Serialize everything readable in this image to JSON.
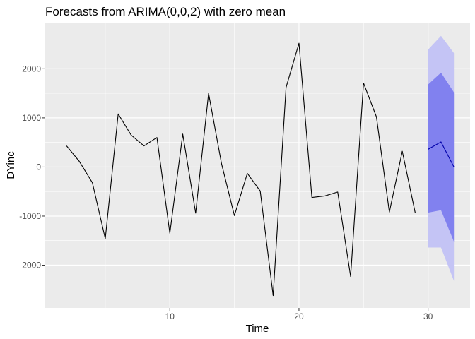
{
  "chart_data": {
    "type": "line",
    "title": "Forecasts from ARIMA(0,0,2) with zero mean",
    "xlabel": "Time",
    "ylabel": "DYinc",
    "xlim": [
      0.35,
      33.25
    ],
    "ylim": [
      -2870,
      2940
    ],
    "x_ticks": [
      10,
      20,
      30
    ],
    "y_ticks": [
      -2000,
      -1000,
      0,
      1000,
      2000
    ],
    "grid": true,
    "series": [
      {
        "role": "observed",
        "color": "#000000",
        "x": [
          2,
          3,
          4,
          5,
          6,
          7,
          8,
          9,
          10,
          11,
          12,
          13,
          14,
          15,
          16,
          17,
          18,
          19,
          20,
          21,
          22,
          23,
          24,
          25,
          26,
          27,
          28,
          29
        ],
        "values": [
          430,
          110,
          -320,
          -1460,
          1080,
          650,
          430,
          600,
          -1350,
          670,
          -940,
          1500,
          70,
          -990,
          -130,
          -490,
          -2620,
          1620,
          2520,
          -620,
          -590,
          -510,
          -2230,
          1710,
          1020,
          -920,
          320,
          -930
        ]
      },
      {
        "role": "forecast-mean",
        "color": "#0000aa",
        "x": [
          30,
          31,
          32
        ],
        "values": [
          360,
          510,
          0
        ]
      }
    ],
    "intervals": [
      {
        "level": "95",
        "color": "#c4c4f5",
        "x": [
          30,
          31,
          32
        ],
        "lower": [
          -1640,
          -1640,
          -2320
        ],
        "upper": [
          2390,
          2670,
          2320
        ]
      },
      {
        "level": "80",
        "color": "#8181ef",
        "x": [
          30,
          31,
          32
        ],
        "lower": [
          -930,
          -880,
          -1520
        ],
        "upper": [
          1680,
          1920,
          1520
        ]
      }
    ]
  }
}
